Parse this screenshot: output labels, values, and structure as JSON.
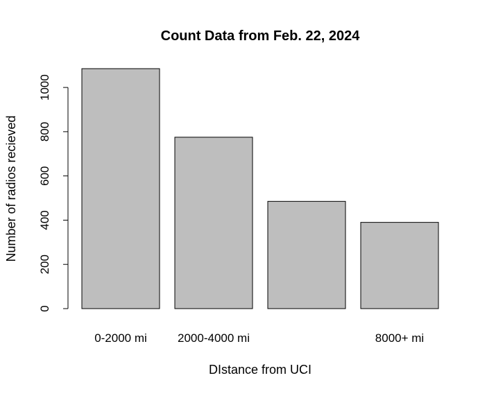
{
  "chart_data": {
    "type": "bar",
    "title": "Count Data from Feb. 22, 2024",
    "xlabel": "DIstance from UCI",
    "ylabel": "Number of radios recieved",
    "categories": [
      "0-2000 mi",
      "2000-4000 mi",
      "",
      "8000+ mi"
    ],
    "values": [
      1085,
      775,
      485,
      390
    ],
    "ylim": [
      0,
      1085
    ],
    "yticks": [
      0,
      200,
      400,
      600,
      800,
      1000
    ],
    "bar_color": "#bebebe",
    "grid": false,
    "legend": "none"
  }
}
